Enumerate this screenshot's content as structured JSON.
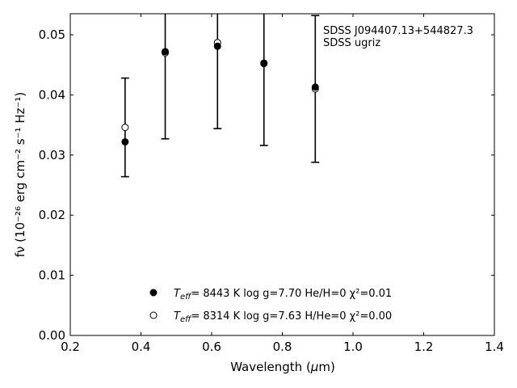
{
  "chart_data": {
    "type": "scatter",
    "title": "",
    "xlabel_pre": "Wavelength (",
    "xlabel_mu": "μ",
    "xlabel_post": "m)",
    "ylabel": "fν (10⁻²⁶ erg cm⁻² s⁻¹ Hz⁻¹)",
    "xlim": [
      0.2,
      1.4
    ],
    "ylim": [
      0.0,
      0.0535
    ],
    "xticks": [
      0.2,
      0.4,
      0.6,
      0.8,
      1.0,
      1.2,
      1.4
    ],
    "xtick_labels": [
      "0.2",
      "0.4",
      "0.6",
      "0.8",
      "1.0",
      "1.2",
      "1.4"
    ],
    "yticks": [
      0.0,
      0.01,
      0.02,
      0.03,
      0.04,
      0.05
    ],
    "ytick_labels": [
      "0.00",
      "0.01",
      "0.02",
      "0.03",
      "0.04",
      "0.05"
    ],
    "grid": false,
    "annotation_lines": [
      "SDSS J094407.13+544827.3",
      "SDSS ugriz"
    ],
    "observed": {
      "x": [
        0.3551,
        0.4686,
        0.6166,
        0.748,
        0.8932
      ],
      "y": [
        0.0346,
        0.047,
        0.0487,
        0.0452,
        0.041
      ],
      "yerr": [
        0.0082,
        0.0143,
        0.0143,
        0.0136,
        0.0122
      ]
    },
    "series": [
      {
        "marker": "filled",
        "x": [
          0.3551,
          0.4686,
          0.6166,
          0.748,
          0.8932
        ],
        "values": [
          0.0322,
          0.0472,
          0.0481,
          0.0453,
          0.0413
        ],
        "legend": {
          "teff": "T",
          "teff_sub": "eff",
          "rest": "=  8443 K  log g=7.70  He/H=0  χ²=0.01"
        }
      },
      {
        "marker": "open",
        "x": [
          0.3551,
          0.4686,
          0.6166,
          0.748,
          0.8932
        ],
        "values": [
          0.0346,
          0.047,
          0.0487,
          0.0452,
          0.041
        ],
        "legend": {
          "teff": "T",
          "teff_sub": "eff",
          "rest": "=  8314 K  log g=7.63  H/He=0  χ²=0.00"
        }
      }
    ]
  }
}
